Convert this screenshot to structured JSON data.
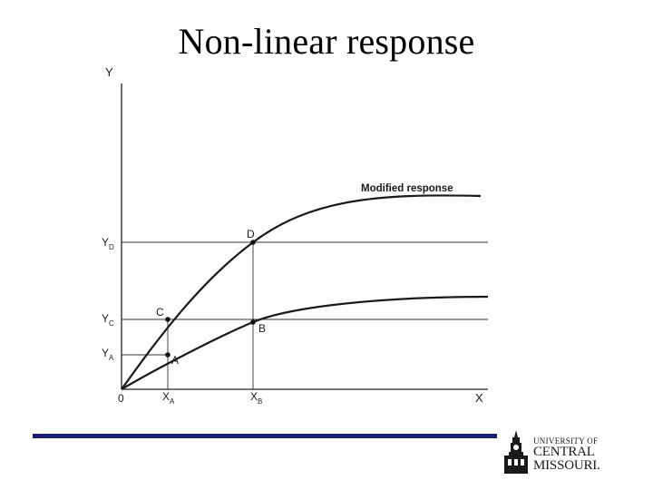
{
  "slide": {
    "title": "Non-linear response"
  },
  "diagram": {
    "axis_labels": {
      "y": "Y",
      "x": "X",
      "origin": "0"
    },
    "curve_label": "Modified response",
    "points": {
      "A": "A",
      "B": "B",
      "C": "C",
      "D": "D"
    },
    "x_ticks": {
      "xa_main": "X",
      "xa_sub": "A",
      "xb_main": "X",
      "xb_sub": "B"
    },
    "y_ticks": {
      "ya_main": "Y",
      "ya_sub": "A",
      "yc_main": "Y",
      "yc_sub": "C",
      "yd_main": "Y",
      "yd_sub": "D"
    }
  },
  "footer": {
    "bar_color": "#1a1f6e",
    "logo": {
      "line1": "UNIVERSITY OF",
      "line2": "CENTRAL",
      "line3": "MISSOURI."
    }
  }
}
